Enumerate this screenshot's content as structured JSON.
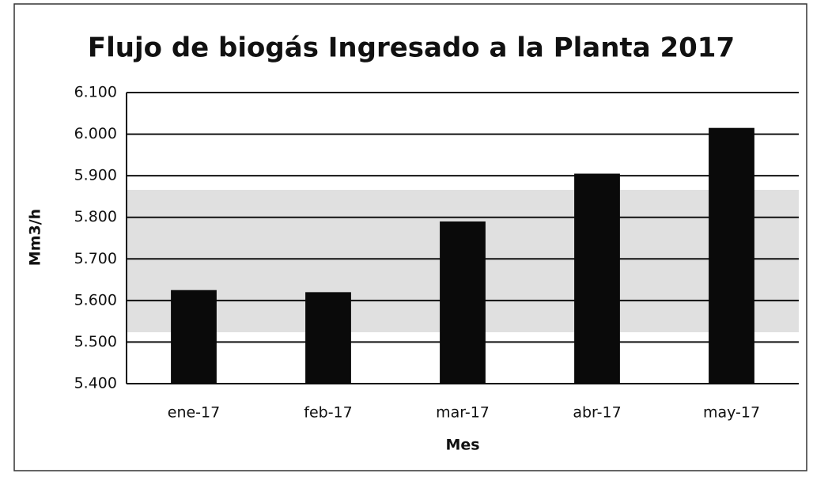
{
  "chart_data": {
    "type": "bar",
    "title": "Flujo de biogás Ingresado a la Planta 2017",
    "x_label": "Mes",
    "y_label": "Mm3/h",
    "categories": [
      "ene-17",
      "feb-17",
      "mar-17",
      "abr-17",
      "may-17"
    ],
    "values": [
      5625,
      5620,
      5790,
      5905,
      6015
    ],
    "color": "#0a0a0a",
    "ylim": [
      5400,
      6100
    ],
    "yticks": [
      {
        "value": 5400,
        "label": "5.400"
      },
      {
        "value": 5500,
        "label": "5.500"
      },
      {
        "value": 5600,
        "label": "5.600"
      },
      {
        "value": 5700,
        "label": "5.700"
      },
      {
        "value": 5800,
        "label": "5.800"
      },
      {
        "value": 5900,
        "label": "5.900"
      },
      {
        "value": 6000,
        "label": "6.000"
      },
      {
        "value": 6100,
        "label": "6.100"
      }
    ],
    "grid": true
  }
}
